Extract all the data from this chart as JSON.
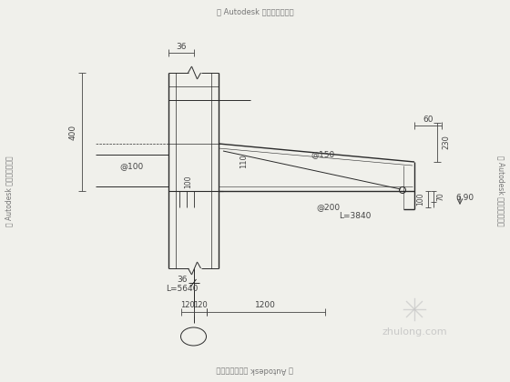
{
  "bg_color": "#f0f0eb",
  "line_color": "#2a2a2a",
  "dim_color": "#444444",
  "text_color": "#2a2a2a",
  "top_text": "由 Autodesk 教育版产品制作",
  "bottom_text": "由 Autodesk 教育版产品制作",
  "left_text": "由 Autodesk 教育版产品制作",
  "right_text": "由 Autodesk 教育版产品制作",
  "watermark": "zhulong.com",
  "figsize": [
    5.6,
    4.2
  ],
  "dpi": 100
}
